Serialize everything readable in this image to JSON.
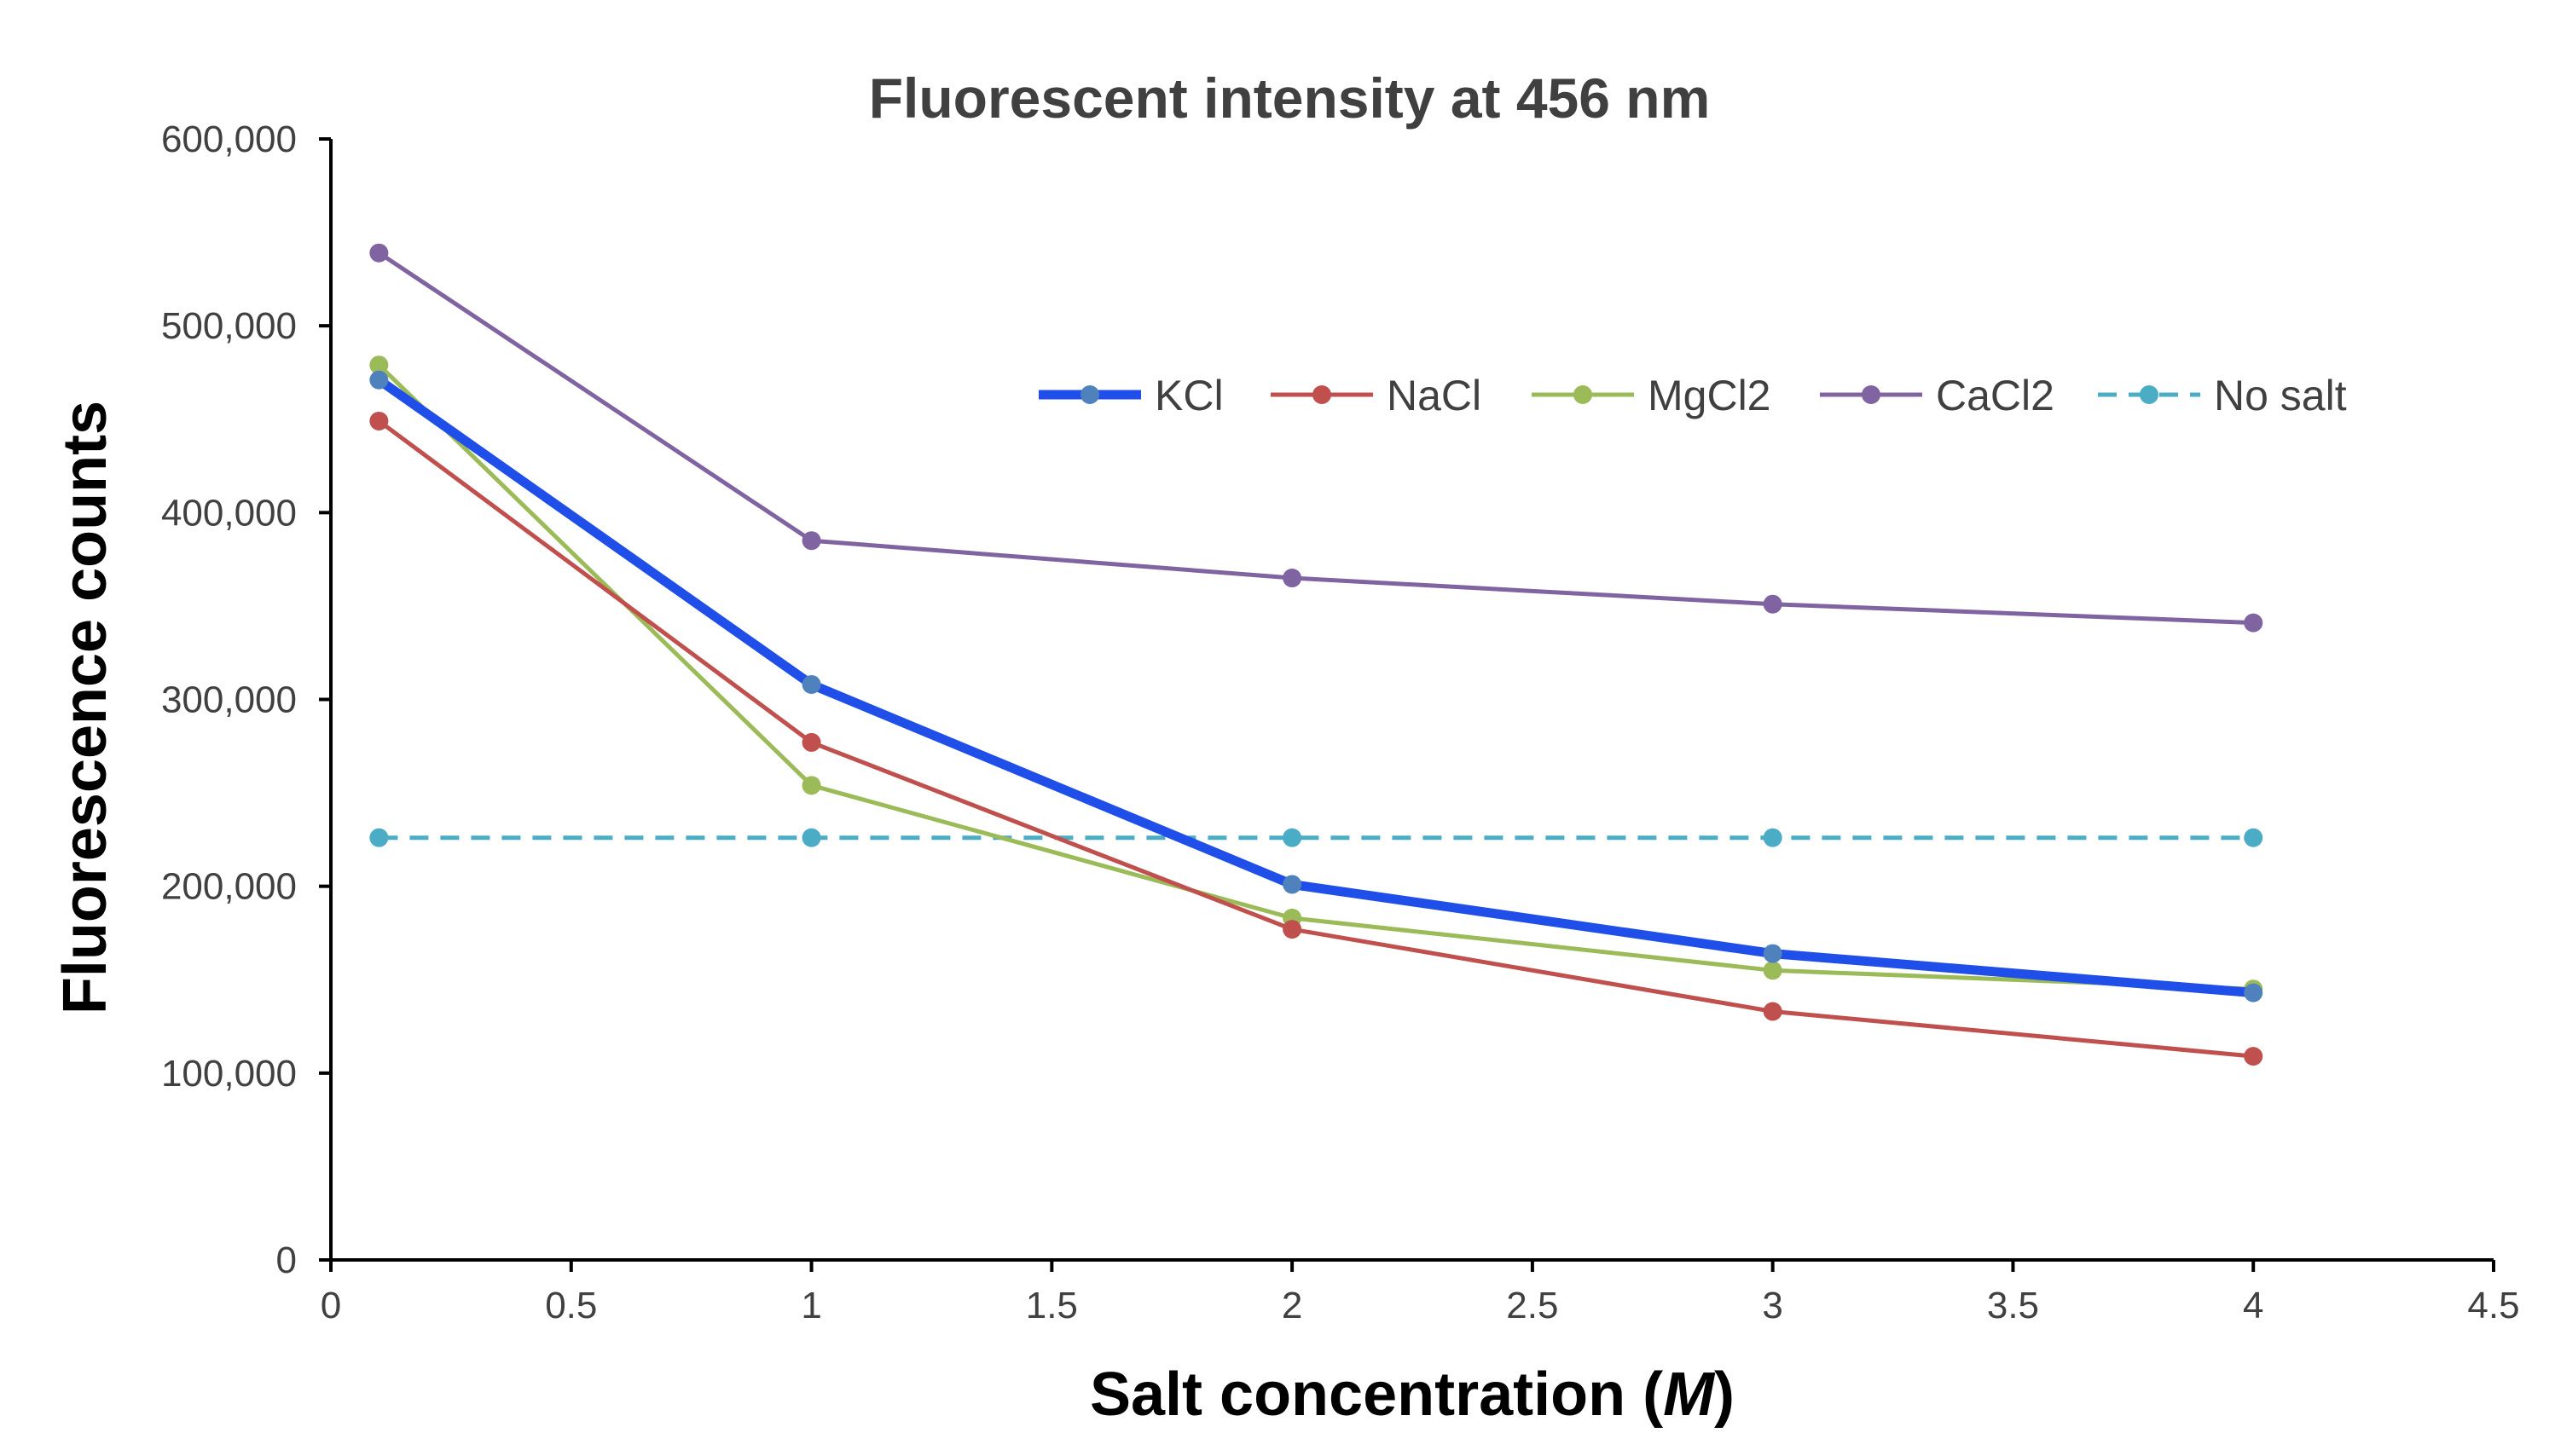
{
  "chart_data": {
    "type": "line",
    "title": "Fluorescent intensity at 456 nm",
    "xlabel_prefix": "Salt concentration (",
    "xlabel_unit": "M",
    "xlabel_suffix": ")",
    "ylabel": "Fluorescence counts",
    "x": [
      0.1,
      1,
      2,
      3,
      4
    ],
    "xlim": [
      0,
      4.5
    ],
    "ylim": [
      0,
      600000
    ],
    "x_ticks": [
      "0",
      "0.5",
      "1",
      "1.5",
      "2",
      "2.5",
      "3",
      "3.5",
      "4",
      "4.5"
    ],
    "y_ticks": [
      "0",
      "100,000",
      "200,000",
      "300,000",
      "400,000",
      "500,000",
      "600,000"
    ],
    "grid": false,
    "legend_position": "upper-right",
    "series": [
      {
        "name": "KCl",
        "color": "#1f4fe8",
        "dash": "solid",
        "thick": true,
        "marker_color": "#4f81bd",
        "values": [
          471000,
          308000,
          201000,
          164000,
          143000
        ]
      },
      {
        "name": "NaCl",
        "color": "#c0504d",
        "dash": "solid",
        "thick": false,
        "marker_color": "#c0504d",
        "values": [
          449000,
          277000,
          177000,
          133000,
          109000
        ]
      },
      {
        "name": "MgCl2",
        "color": "#9bbb59",
        "dash": "solid",
        "thick": false,
        "marker_color": "#9bbb59",
        "values": [
          479000,
          254000,
          183000,
          155000,
          145000
        ]
      },
      {
        "name": "CaCl2",
        "color": "#8064a2",
        "dash": "solid",
        "thick": false,
        "marker_color": "#8064a2",
        "values": [
          539000,
          385000,
          365000,
          351000,
          341000
        ]
      },
      {
        "name": "No salt",
        "color": "#4bacc6",
        "dash": "dashed",
        "thick": false,
        "marker_color": "#4bacc6",
        "values": [
          226000,
          226000,
          226000,
          226000,
          226000
        ]
      }
    ]
  }
}
